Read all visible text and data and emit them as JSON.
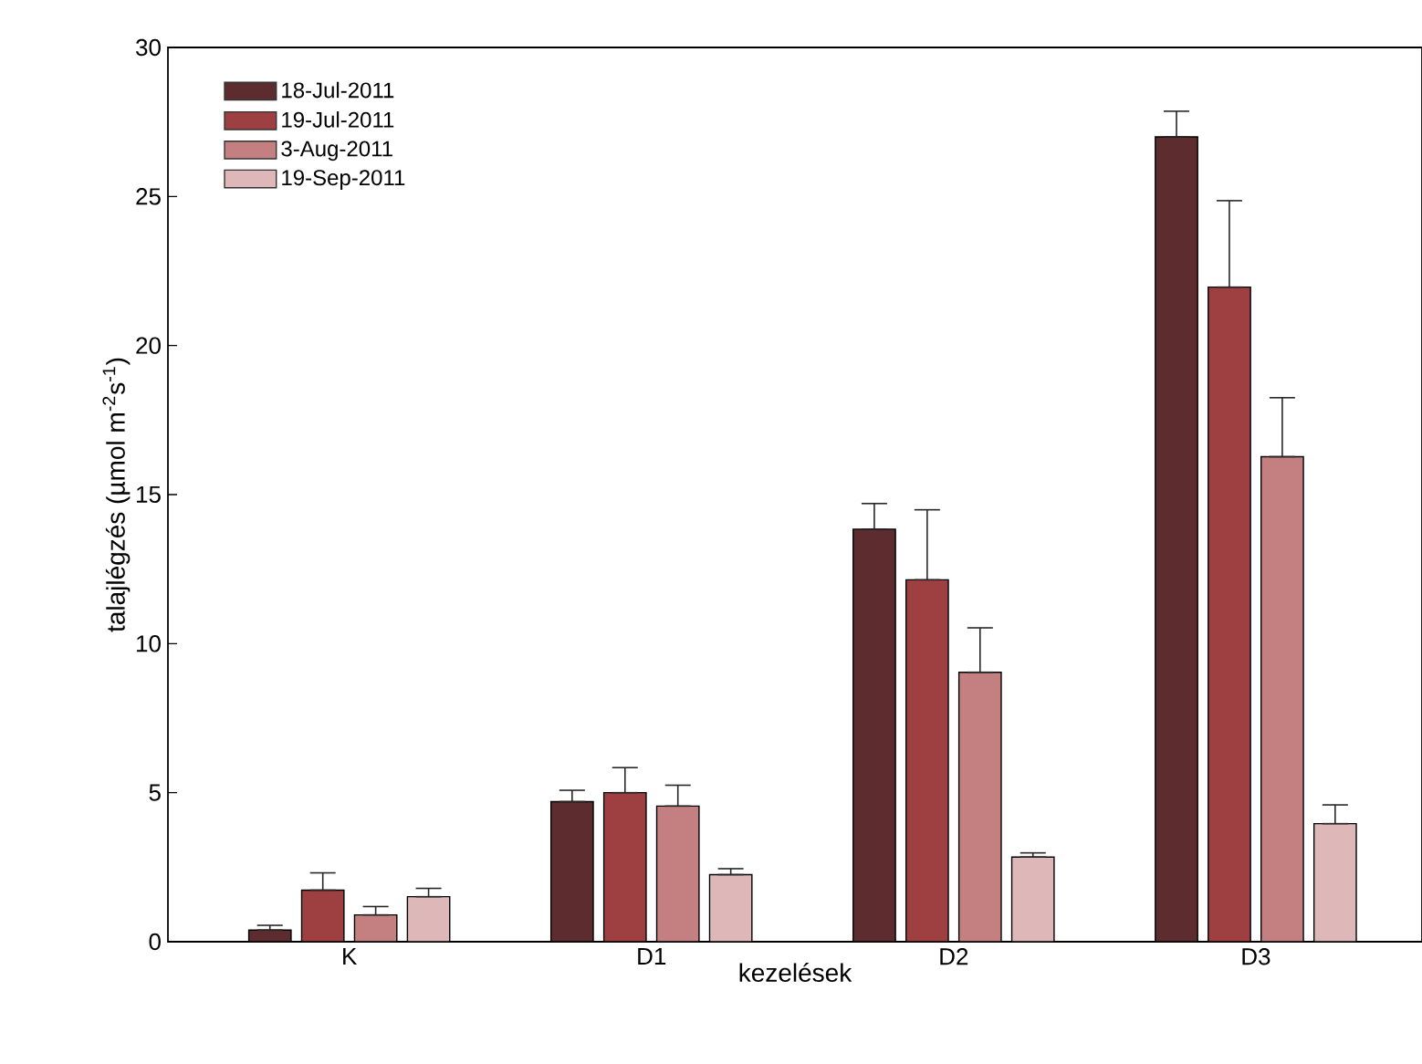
{
  "chart_data": {
    "type": "bar",
    "xlabel": "kezelések",
    "ylabel": "talajlégzés (µmol m$^{-2}$s$^{-1}$)",
    "categories": [
      "K",
      "D1",
      "D2",
      "D3"
    ],
    "series": [
      {
        "name": "18-Jul-2011",
        "color": "#5c2c2f",
        "values": [
          0.39,
          4.7,
          13.84,
          27.0
        ],
        "errors": [
          [
            0.39,
            0.55
          ],
          [
            4.7,
            5.08
          ],
          [
            13.84,
            14.7
          ],
          [
            27.0,
            27.86
          ]
        ]
      },
      {
        "name": "19-Jul-2011",
        "color": "#9e4042",
        "values": [
          1.73,
          5.0,
          12.14,
          21.96
        ],
        "errors": [
          [
            1.73,
            2.31
          ],
          [
            5.0,
            5.84
          ],
          [
            12.14,
            14.49
          ],
          [
            21.96,
            24.86
          ]
        ]
      },
      {
        "name": "3-Aug-2011",
        "color": "#c48080",
        "values": [
          0.9,
          4.55,
          9.04,
          16.27
        ],
        "errors": [
          [
            0.9,
            1.18
          ],
          [
            4.55,
            5.25
          ],
          [
            9.04,
            10.53
          ],
          [
            16.27,
            18.25
          ]
        ]
      },
      {
        "name": "19-Sep-2011",
        "color": "#deb8b8",
        "values": [
          1.51,
          2.25,
          2.84,
          3.96
        ],
        "errors": [
          [
            1.51,
            1.79
          ],
          [
            2.25,
            2.45
          ],
          [
            2.84,
            2.98
          ],
          [
            3.96,
            4.59
          ]
        ]
      }
    ],
    "ylim": [
      0,
      30
    ],
    "yticks": [
      0,
      5,
      10,
      15,
      20,
      25,
      30
    ],
    "legend": "top left",
    "grid": false
  }
}
